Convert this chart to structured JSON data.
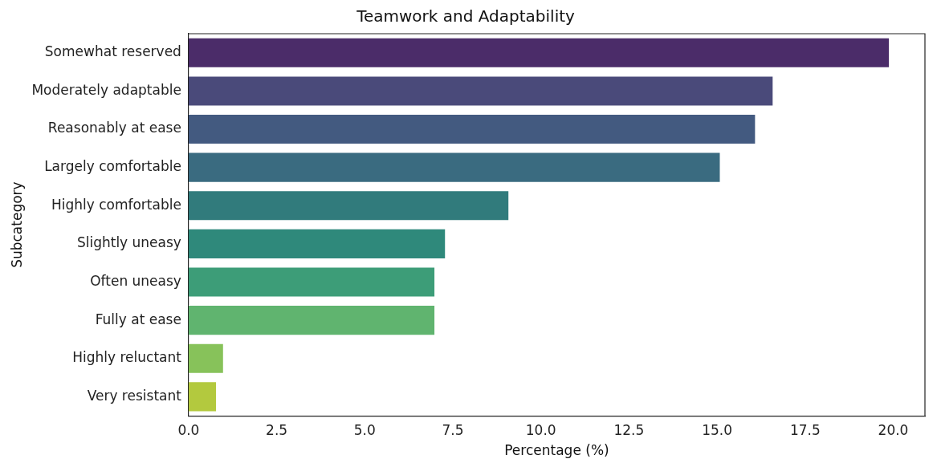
{
  "chart_data": {
    "type": "bar",
    "orientation": "horizontal",
    "title": "Teamwork and Adaptability",
    "xlabel": "Percentage (%)",
    "ylabel": "Subcategory",
    "categories": [
      "Somewhat reserved",
      "Moderately adaptable",
      "Reasonably at ease",
      "Largely comfortable",
      "Highly comfortable",
      "Slightly uneasy",
      "Often uneasy",
      "Fully at ease",
      "Highly reluctant",
      "Very resistant"
    ],
    "values": [
      19.9,
      16.6,
      16.1,
      15.1,
      9.1,
      7.3,
      7.0,
      7.0,
      1.0,
      0.8
    ],
    "colors": [
      "#4b2c69",
      "#4a4a7a",
      "#435a80",
      "#3a6b80",
      "#317b7c",
      "#2f897b",
      "#3d9d78",
      "#60b46f",
      "#87c25a",
      "#b3c93e"
    ],
    "xlim": [
      0,
      20.9
    ],
    "xticks": [
      {
        "value": 0,
        "label": "0.0"
      },
      {
        "value": 2.5,
        "label": "2.5"
      },
      {
        "value": 5,
        "label": "5.0"
      },
      {
        "value": 7.5,
        "label": "7.5"
      },
      {
        "value": 10,
        "label": "10.0"
      },
      {
        "value": 12.5,
        "label": "12.5"
      },
      {
        "value": 15,
        "label": "15.0"
      },
      {
        "value": 17.5,
        "label": "17.5"
      },
      {
        "value": 20,
        "label": "20.0"
      }
    ],
    "grid": false,
    "legend": false
  }
}
